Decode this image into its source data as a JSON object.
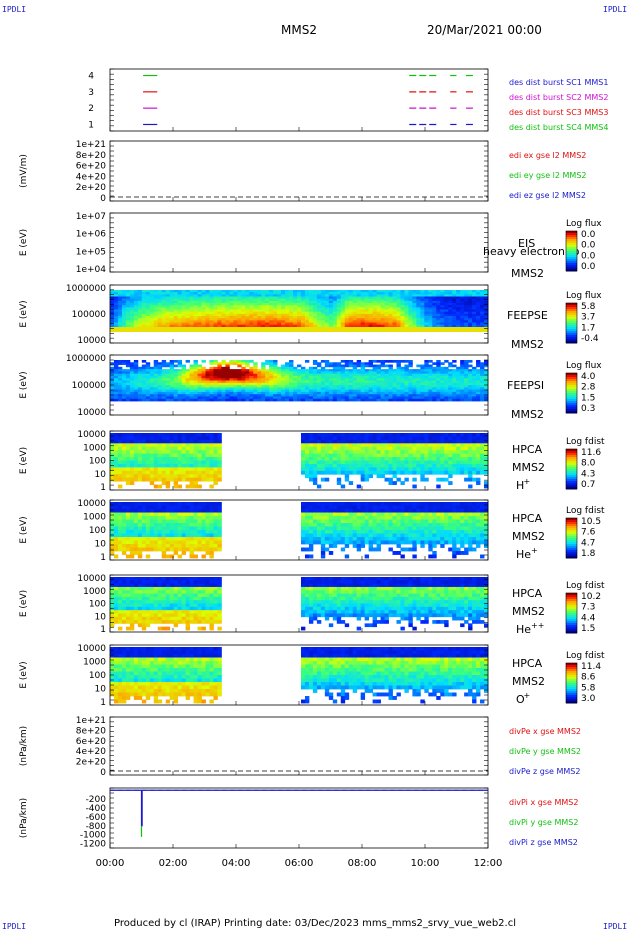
{
  "header": {
    "corner_label": "IPDLI",
    "spacecraft": "MMS2",
    "datetime": "20/Mar/2021 00:00"
  },
  "footer": {
    "text": "Produced by cl (IRAP)    Printing date: 03/Dec/2023    mms_mms2_srvy_vue_web2.cl"
  },
  "colors": {
    "c1": "#1a1acc",
    "c2": "#e01010",
    "c3": "#d010d0",
    "c4": "#10c010",
    "background": "#ffffff"
  },
  "chart_data": [
    {
      "type": "line",
      "panel": "burst",
      "x_ticks": [
        "00:00",
        "02:00",
        "04:00",
        "06:00",
        "08:00",
        "10:00",
        "12:00"
      ],
      "xlim": [
        0,
        12
      ],
      "ylim": [
        0.6,
        4.4
      ],
      "y_ticks": [
        "1",
        "2",
        "3",
        "4"
      ],
      "series": [
        {
          "name": "des dist burst SC1 MMS1",
          "level": 1,
          "color": "#1a1acc",
          "segments": [
            [
              1.05,
              1.5
            ],
            [
              9.5,
              10.4
            ],
            [
              10.8,
              11.0
            ],
            [
              11.3,
              11.6
            ]
          ]
        },
        {
          "name": "des dist burst SC2 MMS2",
          "level": 2,
          "color": "#d010d0",
          "segments": [
            [
              1.05,
              1.5
            ],
            [
              9.5,
              10.4
            ],
            [
              10.8,
              11.0
            ],
            [
              11.3,
              11.6
            ]
          ]
        },
        {
          "name": "des dist burst SC3 MMS3",
          "level": 3,
          "color": "#e01010",
          "segments": [
            [
              1.05,
              1.5
            ],
            [
              9.5,
              10.4
            ],
            [
              10.8,
              11.0
            ],
            [
              11.3,
              11.6
            ]
          ]
        },
        {
          "name": "des dist burst SC4 MMS4",
          "level": 4,
          "color": "#10c010",
          "segments": [
            [
              1.05,
              1.5
            ],
            [
              9.5,
              10.4
            ],
            [
              10.8,
              11.0
            ],
            [
              11.3,
              11.6
            ]
          ]
        }
      ],
      "legend": [
        "des dist burst SC1 MMS1",
        "des dist burst SC2 MMS2",
        "des dist burst SC3 MMS3",
        "des dist burst SC4 MMS4"
      ],
      "legend_colors": [
        "#1a1acc",
        "#d010d0",
        "#e01010",
        "#10c010"
      ]
    },
    {
      "type": "line",
      "panel": "edi",
      "ylabel": "(mV/m)",
      "y_ticks": [
        "1e+21",
        "8e+20",
        "6e+20",
        "4e+20",
        "2e+20",
        "0"
      ],
      "series": [],
      "legend": [
        "edi ex gse l2 MMS2",
        "edi ey gse l2 MMS2",
        "edi ez gse l2 MMS2"
      ],
      "legend_colors": [
        "#e01010",
        "#10c010",
        "#1a1acc"
      ]
    },
    {
      "type": "heatmap",
      "panel": "eis",
      "ylabel": "E (eV)",
      "y_ticks": [
        "1e+07",
        "1e+06",
        "1e+05",
        "1e+04"
      ],
      "label_lines": [
        "EIS",
        "MMS2"
      ],
      "overlay_label": "heavy electron to",
      "colorbar": {
        "title": "Log flux",
        "ticks": [
          "0.0",
          "0.0",
          "0.0",
          "0.0"
        ]
      },
      "data": "empty"
    },
    {
      "type": "heatmap",
      "panel": "feeps_e",
      "ylabel": "E (eV)",
      "y_ticks": [
        "1000000",
        "100000",
        "10000"
      ],
      "label_lines": [
        "FEEPSE",
        "MMS2"
      ],
      "colorbar": {
        "title": "Log flux",
        "ticks": [
          "5.8",
          "3.7",
          "1.7",
          "-0.4"
        ]
      },
      "time_hours": [
        0,
        0.5,
        1,
        1.5,
        2,
        2.5,
        3,
        3.5,
        4,
        4.5,
        5,
        5.5,
        6,
        6.5,
        7,
        7.5,
        8,
        8.5,
        9,
        9.5,
        10,
        10.5,
        11,
        11.5,
        12
      ],
      "peak_level": [
        0.25,
        0.55,
        0.7,
        0.8,
        0.85,
        0.88,
        0.9,
        0.92,
        0.93,
        0.94,
        0.95,
        0.93,
        0.9,
        0.7,
        0.55,
        0.95,
        0.97,
        0.95,
        0.9,
        0.6,
        0.35,
        0.25,
        0.2,
        0.2,
        0.2
      ]
    },
    {
      "type": "heatmap",
      "panel": "feeps_i",
      "ylabel": "E (eV)",
      "y_ticks": [
        "1000000",
        "100000",
        "10000"
      ],
      "label_lines": [
        "FEEPSI",
        "MMS2"
      ],
      "colorbar": {
        "title": "Log flux",
        "ticks": [
          "4.0",
          "2.8",
          "1.5",
          "0.3"
        ]
      },
      "time_hours": [
        0,
        0.5,
        1,
        1.5,
        2,
        2.5,
        3,
        3.5,
        4,
        4.5,
        5,
        5.5,
        6,
        6.5,
        7,
        7.5,
        8,
        8.5,
        9,
        9.5,
        10,
        10.5,
        11,
        11.5,
        12
      ],
      "peak_level": [
        0.15,
        0.2,
        0.25,
        0.3,
        0.4,
        0.6,
        0.8,
        0.95,
        0.95,
        0.75,
        0.6,
        0.45,
        0.35,
        0.3,
        0.3,
        0.3,
        0.3,
        0.28,
        0.28,
        0.27,
        0.27,
        0.26,
        0.26,
        0.25,
        0.25
      ]
    },
    {
      "type": "heatmap",
      "panel": "hpca_h",
      "ylabel": "E (eV)",
      "y_ticks": [
        "10000",
        "1000",
        "100",
        "10",
        "1"
      ],
      "label_lines": [
        "HPCA",
        "MMS2"
      ],
      "ion": "H",
      "ion_charge": "+",
      "colorbar": {
        "title": "Log fdist",
        "ticks": [
          "11.6",
          "8.0",
          "4.3",
          "0.7"
        ]
      },
      "gap_hours": [
        3.5,
        6.0
      ]
    },
    {
      "type": "heatmap",
      "panel": "hpca_he",
      "ylabel": "E (eV)",
      "y_ticks": [
        "10000",
        "1000",
        "100",
        "10",
        "1"
      ],
      "label_lines": [
        "HPCA",
        "MMS2"
      ],
      "ion": "He",
      "ion_charge": "+",
      "colorbar": {
        "title": "Log fdist",
        "ticks": [
          "10.5",
          "7.6",
          "4.7",
          "1.8"
        ]
      },
      "gap_hours": [
        3.5,
        6.0
      ]
    },
    {
      "type": "heatmap",
      "panel": "hpca_hepp",
      "ylabel": "E (eV)",
      "y_ticks": [
        "10000",
        "1000",
        "100",
        "10",
        "1"
      ],
      "label_lines": [
        "HPCA",
        "MMS2"
      ],
      "ion": "He",
      "ion_charge": "++",
      "colorbar": {
        "title": "Log fdist",
        "ticks": [
          "10.2",
          "7.3",
          "4.4",
          "1.5"
        ]
      },
      "gap_hours": [
        3.5,
        6.0
      ]
    },
    {
      "type": "heatmap",
      "panel": "hpca_o",
      "ylabel": "E (eV)",
      "y_ticks": [
        "10000",
        "1000",
        "100",
        "10",
        "1"
      ],
      "label_lines": [
        "HPCA",
        "MMS2"
      ],
      "ion": "O",
      "ion_charge": "+",
      "colorbar": {
        "title": "Log fdist",
        "ticks": [
          "11.4",
          "8.6",
          "5.8",
          "3.0"
        ]
      },
      "gap_hours": [
        3.5,
        6.0
      ]
    },
    {
      "type": "line",
      "panel": "divpe",
      "ylabel": "(nPa/km)",
      "y_ticks": [
        "1e+21",
        "8e+20",
        "6e+20",
        "4e+20",
        "2e+20",
        "0"
      ],
      "series": [],
      "legend": [
        "divPe x gse MMS2",
        "divPe y gse MMS2",
        "divPe z gse MMS2"
      ],
      "legend_colors": [
        "#e01010",
        "#10c010",
        "#1a1acc"
      ]
    },
    {
      "type": "line",
      "panel": "divpi",
      "ylabel": "(nPa/km)",
      "y_ticks": [
        "-200",
        "-400",
        "-600",
        "-800",
        "-1000",
        "-1200"
      ],
      "ylim": [
        -1300,
        50
      ],
      "series": [
        {
          "name": "divPi z gse MMS2",
          "color": "#1a1acc",
          "x": [
            0,
            1.0,
            1.0,
            1.02,
            1.02,
            12
          ],
          "y": [
            0,
            0,
            -800,
            -800,
            0,
            0
          ]
        },
        {
          "name": "divPi y gse MMS2",
          "color": "#10c010",
          "x": [
            1.0,
            1.0
          ],
          "y": [
            -800,
            -1050
          ]
        }
      ],
      "legend": [
        "divPi x gse MMS2",
        "divPi y gse MMS2",
        "divPi z gse MMS2"
      ],
      "legend_colors": [
        "#e01010",
        "#10c010",
        "#1a1acc"
      ],
      "x_ticks": [
        "00:00",
        "02:00",
        "04:00",
        "06:00",
        "08:00",
        "10:00",
        "12:00"
      ]
    }
  ]
}
